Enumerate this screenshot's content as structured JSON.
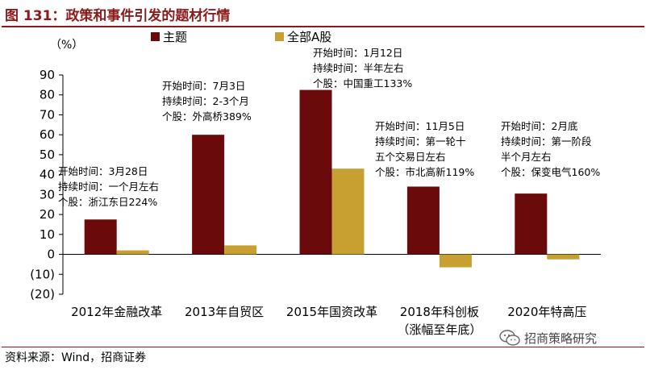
{
  "figure": {
    "title": "图 131：政策和事件引发的题材行情",
    "source": "资料来源：Wind，招商证券",
    "watermark": "招商策略研究"
  },
  "colors": {
    "title": "#8b1a1a",
    "theme_series": "#6b0a0a",
    "a_share_series": "#c8a032",
    "negative_tick": "#c00000"
  },
  "chart_data": {
    "type": "bar",
    "unit_label": "（%）",
    "categories": [
      [
        "2012年金融改革"
      ],
      [
        "2013年自贸区"
      ],
      [
        "2015年国资改革"
      ],
      [
        "2018年科创板",
        "（涨幅至年底）"
      ],
      [
        "2020年特高压"
      ]
    ],
    "series": [
      {
        "name": "主题",
        "values": [
          17.5,
          60,
          82.5,
          34,
          30.5
        ]
      },
      {
        "name": "全部A股",
        "values": [
          2,
          4.5,
          43,
          -6.5,
          -2.5
        ]
      }
    ],
    "ylim": [
      -20,
      90
    ],
    "yticks": [
      {
        "value": 90,
        "label": "90"
      },
      {
        "value": 80,
        "label": "80"
      },
      {
        "value": 70,
        "label": "70"
      },
      {
        "value": 60,
        "label": "60"
      },
      {
        "value": 50,
        "label": "50"
      },
      {
        "value": 40,
        "label": "40"
      },
      {
        "value": 30,
        "label": "30"
      },
      {
        "value": 20,
        "label": "20"
      },
      {
        "value": 10,
        "label": "10"
      },
      {
        "value": 0,
        "label": "0"
      },
      {
        "value": -10,
        "label": "(10)"
      },
      {
        "value": -20,
        "label": "(20)"
      }
    ],
    "legend_position": "top-left",
    "annotations": [
      {
        "category": "2012年金融改革",
        "lines": [
          "开始时间：3月28日",
          "持续时间：一个月左右",
          "个股：浙江东日224%"
        ]
      },
      {
        "category": "2013年自贸区",
        "lines": [
          "开始时间：7月3日",
          "持续时间：2-3个月",
          "个股：外高桥389%"
        ]
      },
      {
        "category": "2015年国资改革",
        "lines": [
          "开始时间：1月12日",
          "持续时间：半年左右",
          "个股：中国重工133%"
        ]
      },
      {
        "category": "2018年科创板",
        "lines": [
          "开始时间：11月5日",
          "持续时间：第一轮十",
          "五个交易日左右",
          "个股：市北高新119%"
        ]
      },
      {
        "category": "2020年特高压",
        "lines": [
          "开始时间：2月底",
          "持续时间：第一阶段",
          "半个月左右",
          "个股：保变电气160%"
        ]
      }
    ]
  }
}
